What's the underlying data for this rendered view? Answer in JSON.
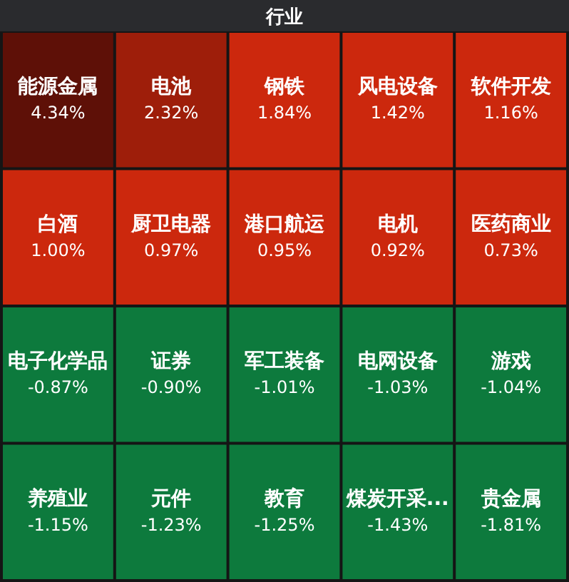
{
  "chart_data": {
    "type": "other",
    "title": "行业",
    "categories": [
      "能源金属",
      "电池",
      "钢铁",
      "风电设备",
      "软件开发",
      "白酒",
      "厨卫电器",
      "港口航运",
      "电机",
      "医药商业",
      "电子化学品",
      "证券",
      "军工装备",
      "电网设备",
      "游戏",
      "养殖业",
      "元件",
      "教育",
      "煤炭开采...",
      "贵金属"
    ],
    "values": [
      4.34,
      2.32,
      1.84,
      1.42,
      1.16,
      1.0,
      0.97,
      0.95,
      0.92,
      0.73,
      -0.87,
      -0.9,
      -1.01,
      -1.03,
      -1.04,
      -1.15,
      -1.23,
      -1.25,
      -1.43,
      -1.81
    ],
    "value_labels": [
      "4.34%",
      "2.32%",
      "1.84%",
      "1.42%",
      "1.16%",
      "1.00%",
      "0.97%",
      "0.95%",
      "0.92%",
      "0.73%",
      "-0.87%",
      "-0.90%",
      "-1.01%",
      "-1.03%",
      "-1.04%",
      "-1.15%",
      "-1.23%",
      "-1.25%",
      "-1.43%",
      "-1.81%"
    ]
  }
}
